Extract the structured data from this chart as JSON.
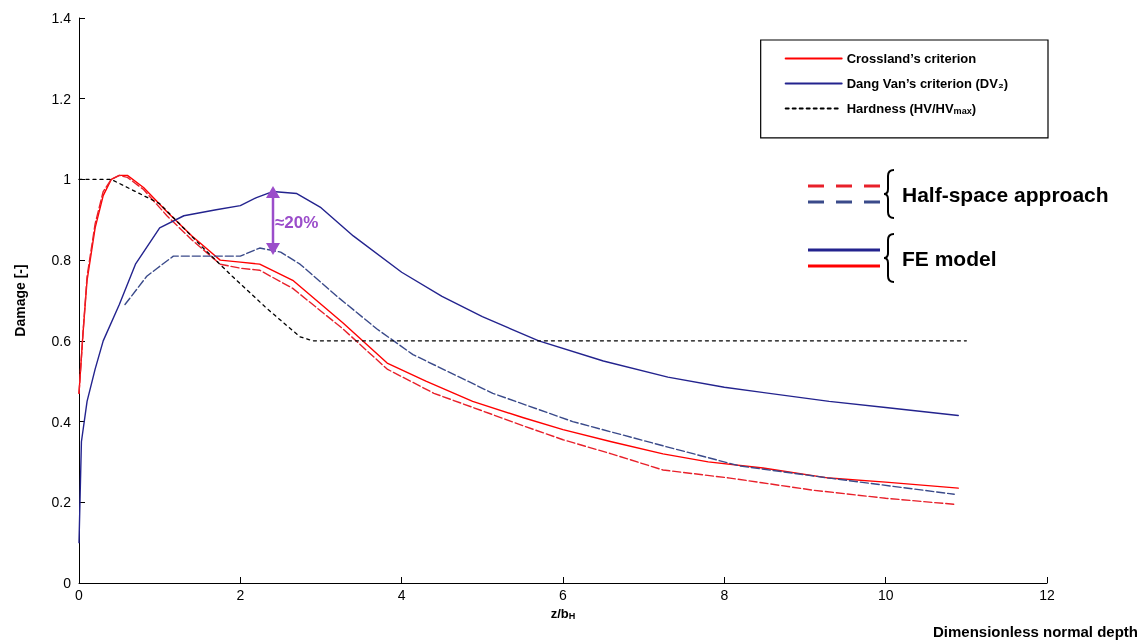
{
  "chart_data": {
    "type": "line",
    "xlabel": "z/b$_{H}$",
    "ylabel": "Damage [-]",
    "xlim": [
      0,
      12
    ],
    "xticks": [
      0,
      2,
      4,
      6,
      8,
      10,
      12
    ],
    "ylim": [
      0,
      1.4
    ],
    "yticks": [
      0,
      0.2,
      0.4,
      0.6,
      0.8,
      1,
      1.2,
      1.4
    ],
    "grid": false,
    "legend": "top right",
    "marker": "none",
    "series": [
      {
        "name": "Crossland’s criterion",
        "color": "#ff0000",
        "line_style": "solid",
        "x": [
          0,
          0.05,
          0.1,
          0.2,
          0.3,
          0.4,
          0.5,
          0.6,
          0.8,
          1.09,
          1.4,
          1.75,
          2.0,
          2.24,
          2.65,
          3.27,
          3.82,
          4.3,
          4.88,
          5.5,
          6.0,
          6.6,
          7.24,
          7.8,
          8.48,
          9.3,
          10.0,
          10.9
        ],
        "values": [
          0.47,
          0.62,
          0.75,
          0.88,
          0.96,
          1.0,
          1.01,
          1.01,
          0.98,
          0.92,
          0.86,
          0.8,
          0.795,
          0.79,
          0.75,
          0.645,
          0.545,
          0.5,
          0.45,
          0.41,
          0.38,
          0.35,
          0.32,
          0.3,
          0.285,
          0.26,
          0.25,
          0.235
        ]
      },
      {
        "color": "#e8202a",
        "line_style": "dashed",
        "x": [
          0,
          0.05,
          0.1,
          0.2,
          0.3,
          0.4,
          0.5,
          0.6,
          0.8,
          1.09,
          1.4,
          1.75,
          2.0,
          2.24,
          2.65,
          3.27,
          3.82,
          4.4,
          5.09,
          5.5,
          6.0,
          6.6,
          7.24,
          8.07,
          9.1,
          10.0,
          10.85
        ],
        "values": [
          0.47,
          0.62,
          0.76,
          0.89,
          0.97,
          1.0,
          1.01,
          1.005,
          0.975,
          0.91,
          0.85,
          0.79,
          0.78,
          0.775,
          0.73,
          0.63,
          0.53,
          0.47,
          0.42,
          0.39,
          0.355,
          0.32,
          0.28,
          0.26,
          0.23,
          0.21,
          0.195
        ]
      },
      {
        "name": "Dang Van’s criterion (DV₂)",
        "color": "#23238e",
        "line_style": "solid",
        "x": [
          0,
          0.03,
          0.1,
          0.2,
          0.3,
          0.5,
          0.7,
          1.0,
          1.3,
          1.7,
          2.0,
          2.2,
          2.4,
          2.7,
          3.0,
          3.4,
          4.0,
          4.5,
          5.0,
          5.7,
          6.5,
          7.3,
          8.0,
          9.3,
          10.0,
          10.9
        ],
        "values": [
          0.1,
          0.35,
          0.45,
          0.53,
          0.6,
          0.69,
          0.79,
          0.88,
          0.91,
          0.925,
          0.935,
          0.955,
          0.97,
          0.965,
          0.93,
          0.86,
          0.77,
          0.71,
          0.66,
          0.6,
          0.55,
          0.51,
          0.485,
          0.45,
          0.435,
          0.415
        ]
      },
      {
        "color": "#3a4a8a",
        "line_style": "dashed",
        "x": [
          0.57,
          0.84,
          0.97,
          1.17,
          1.5,
          2.0,
          2.24,
          2.5,
          2.74,
          3.2,
          3.69,
          4.14,
          5.13,
          6.12,
          7.24,
          8.19,
          9.3,
          10.85
        ],
        "values": [
          0.69,
          0.76,
          0.78,
          0.81,
          0.81,
          0.81,
          0.83,
          0.82,
          0.79,
          0.71,
          0.63,
          0.566,
          0.47,
          0.4,
          0.34,
          0.29,
          0.26,
          0.22
        ]
      },
      {
        "name": "Hardness (HV/HV$_{max}$)",
        "color": "#000000",
        "line_style": "dotted",
        "x": [
          0,
          0.4,
          0.6,
          1.0,
          1.54,
          1.9,
          2.33,
          2.74,
          2.9,
          11.0
        ],
        "values": [
          1.0,
          1.0,
          0.98,
          0.94,
          0.83,
          0.76,
          0.68,
          0.61,
          0.6,
          0.6
        ]
      }
    ],
    "annotations": [
      "≈20%",
      "Half-space approach",
      "FE model",
      "Dimensionless normal depth"
    ]
  }
}
